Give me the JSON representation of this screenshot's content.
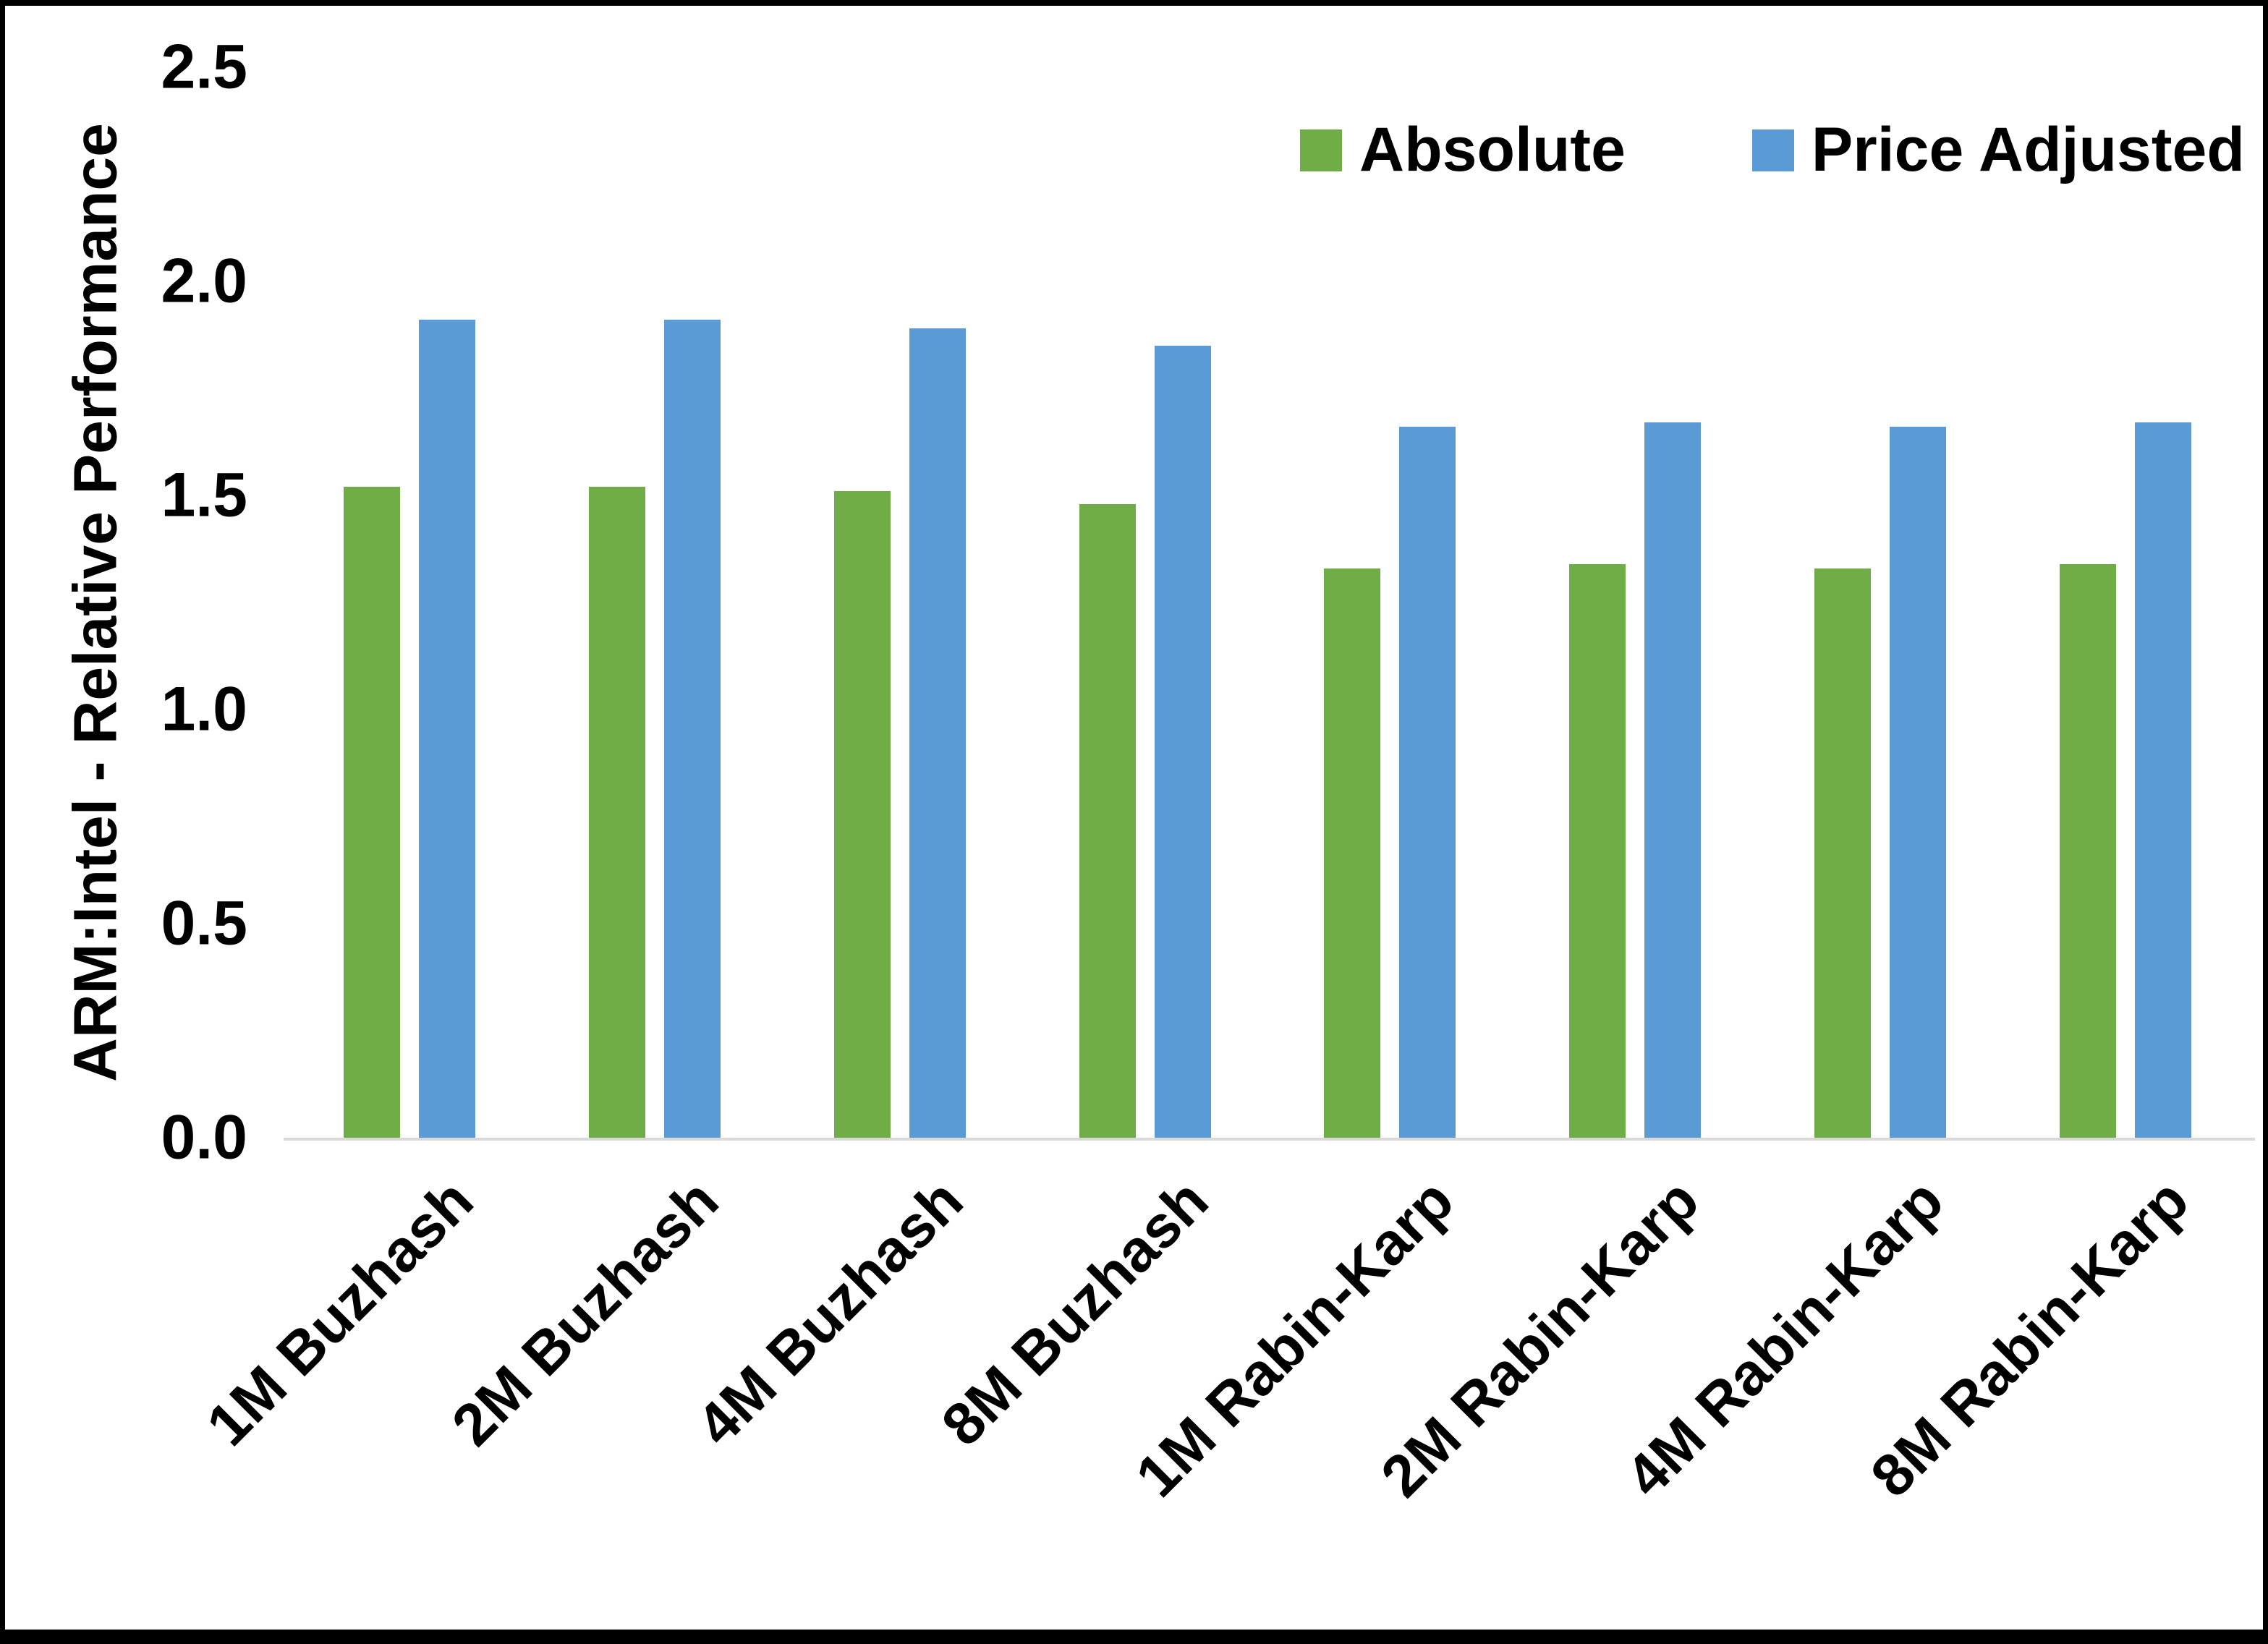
{
  "chart_data": {
    "type": "bar",
    "title": "",
    "xlabel": "",
    "ylabel": "ARM:Intel - Relative Performance",
    "ylim": [
      0,
      2.5
    ],
    "yticks": [
      0.0,
      0.5,
      1.0,
      1.5,
      2.0,
      2.5
    ],
    "ytick_format_decimals": 1,
    "grid": false,
    "legend_position": "top-right",
    "categories": [
      "1M Buzhash",
      "2M Buzhash",
      "4M Buzhash",
      "8M Buzhash",
      "1M Rabin-Karp",
      "2M Rabin-Karp",
      "4M Rabin-Karp",
      "8M Rabin-Karp"
    ],
    "series": [
      {
        "name": "Absolute",
        "color": "#70AD47",
        "values": [
          1.52,
          1.52,
          1.51,
          1.48,
          1.33,
          1.34,
          1.33,
          1.34
        ]
      },
      {
        "name": "Price Adjusted",
        "color": "#5B9BD5",
        "values": [
          1.91,
          1.91,
          1.89,
          1.85,
          1.66,
          1.67,
          1.66,
          1.67
        ]
      }
    ]
  }
}
